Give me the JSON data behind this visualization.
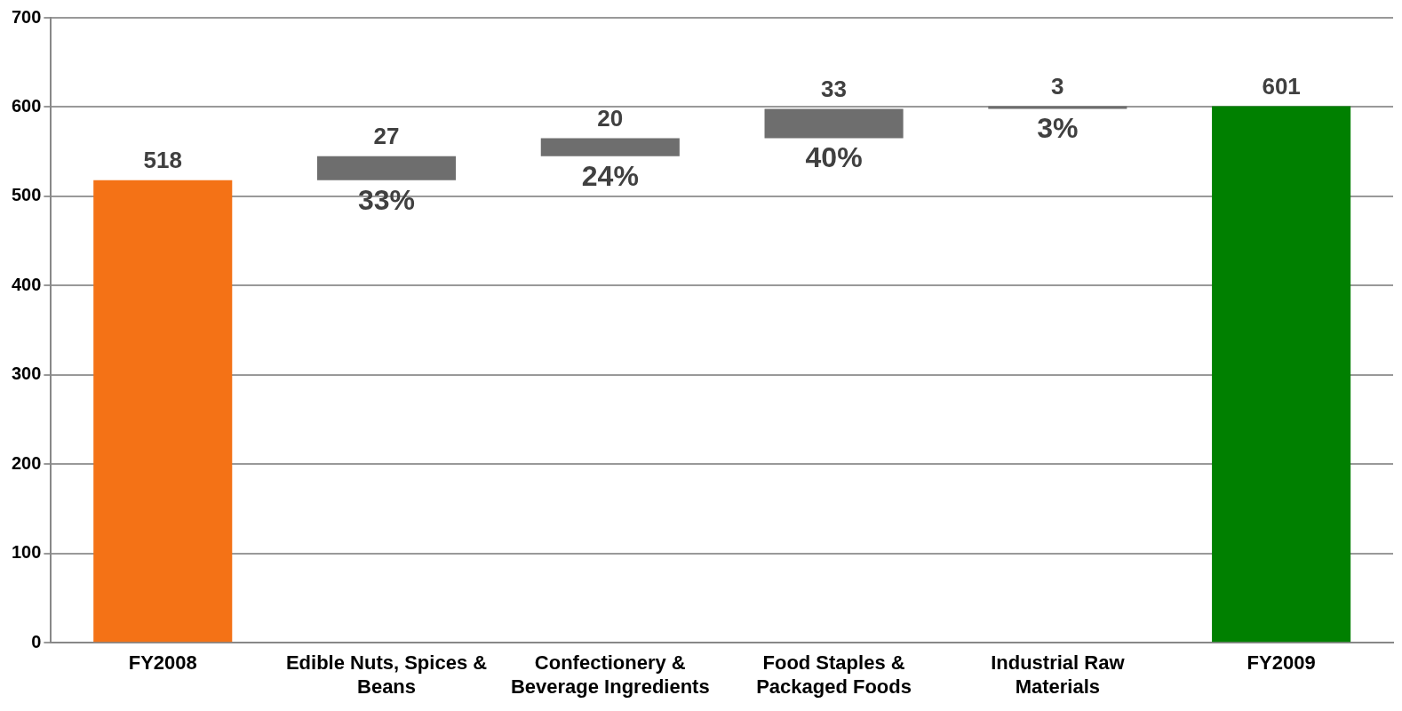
{
  "chart_data": {
    "type": "bar",
    "categories": [
      "FY2008",
      "Edible Nuts, Spices & Beans",
      "Confectionery & Beverage Ingredients",
      "Food Staples & Packaged Foods",
      "Industrial Raw Materials",
      "FY2009"
    ],
    "values": [
      518,
      27,
      20,
      33,
      3,
      601
    ],
    "base": [
      0,
      518,
      545,
      565,
      598,
      0
    ],
    "colors": [
      "#f47216",
      "#6e6e6e",
      "#6e6e6e",
      "#6e6e6e",
      "#6e6e6e",
      "#008000"
    ],
    "ylim": [
      0,
      700
    ],
    "yticks": [
      0,
      100,
      200,
      300,
      400,
      500,
      600,
      700
    ],
    "grid": "y",
    "data_labels": true,
    "legend": false,
    "annotations": [
      {
        "text": "33%",
        "x": "Edible Nuts, Spices & Beans",
        "y": 518
      },
      {
        "text": "24%",
        "x": "Confectionery & Beverage Ingredients",
        "y": 545
      },
      {
        "text": "40%",
        "x": "Food Staples & Packaged Foods",
        "y": 565
      },
      {
        "text": "3%",
        "x": "Industrial Raw Materials",
        "y": 598
      }
    ]
  }
}
